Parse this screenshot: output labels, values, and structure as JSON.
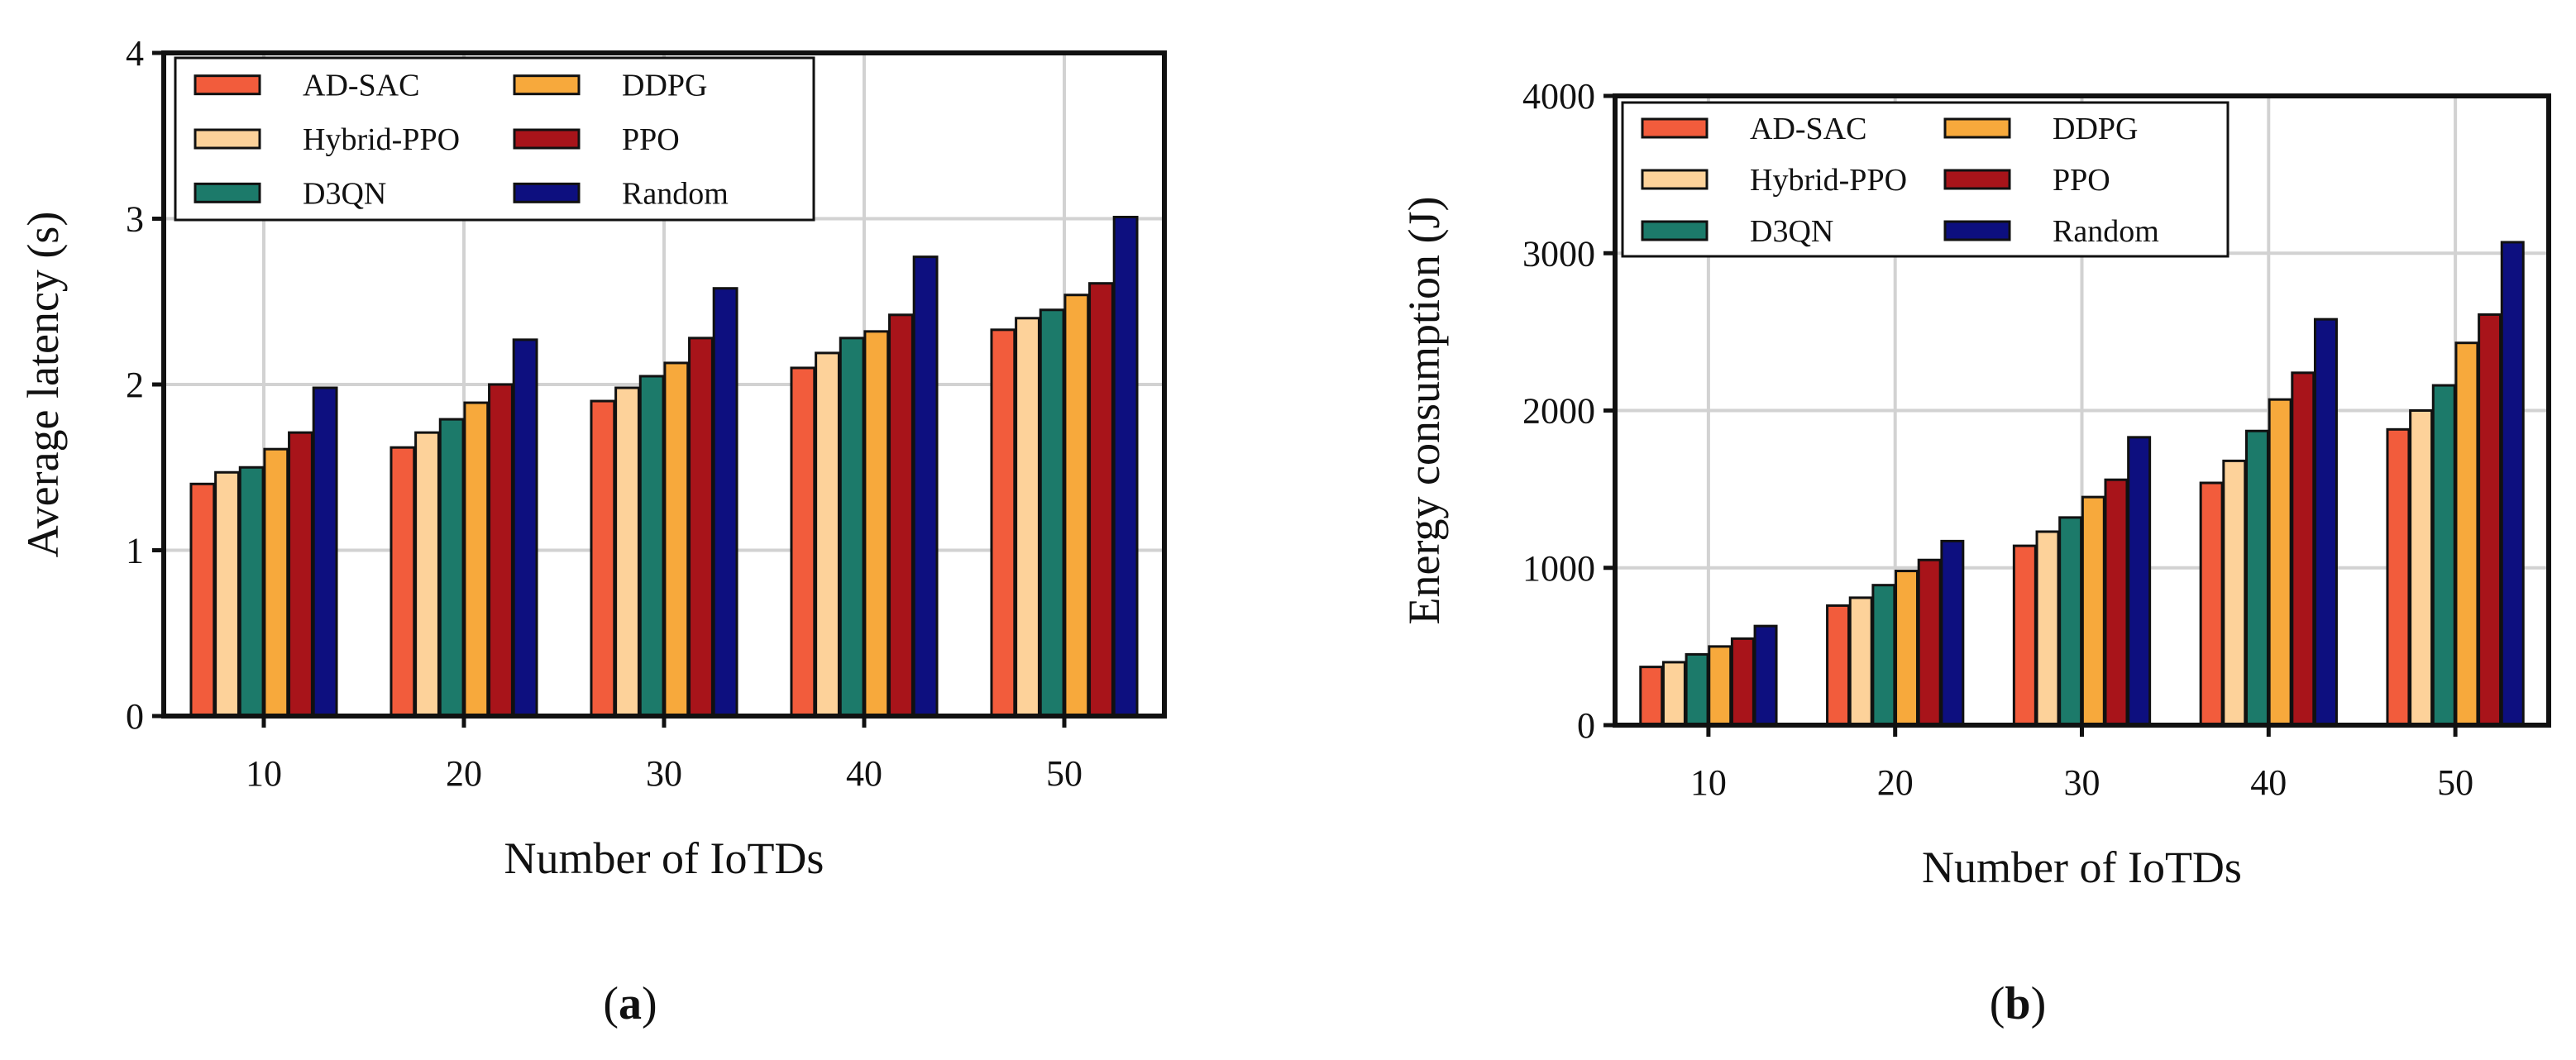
{
  "chart_data": [
    {
      "type": "bar",
      "panel": "a",
      "title": "",
      "xlabel": "Number of IoTDs",
      "ylabel": "Average latency (s)",
      "ylim": [
        0,
        4
      ],
      "yticks": [
        0,
        1,
        2,
        3,
        4
      ],
      "grid": true,
      "legend_position": "top-left",
      "categories": [
        "10",
        "20",
        "30",
        "40",
        "50"
      ],
      "series": [
        {
          "name": "AD-SAC",
          "color": "#f25c3c",
          "values": [
            1.4,
            1.62,
            1.9,
            2.1,
            2.33
          ]
        },
        {
          "name": "Hybrid-PPO",
          "color": "#fdd29a",
          "values": [
            1.47,
            1.71,
            1.98,
            2.19,
            2.4
          ]
        },
        {
          "name": "D3QN",
          "color": "#1c7a6a",
          "values": [
            1.5,
            1.79,
            2.05,
            2.28,
            2.45
          ]
        },
        {
          "name": "DDPG",
          "color": "#f7a93c",
          "values": [
            1.61,
            1.89,
            2.13,
            2.32,
            2.54
          ]
        },
        {
          "name": "PPO",
          "color": "#a8141a",
          "values": [
            1.71,
            2.0,
            2.28,
            2.42,
            2.61
          ]
        },
        {
          "name": "Random",
          "color": "#0d0f7f",
          "values": [
            1.98,
            2.27,
            2.58,
            2.77,
            3.01
          ]
        }
      ]
    },
    {
      "type": "bar",
      "panel": "b",
      "title": "",
      "xlabel": "Number of IoTDs",
      "ylabel": "Energy consumption (J)",
      "ylim": [
        0,
        4000
      ],
      "yticks": [
        0,
        1000,
        2000,
        3000,
        4000
      ],
      "grid": true,
      "legend_position": "top-left",
      "categories": [
        "10",
        "20",
        "30",
        "40",
        "50"
      ],
      "series": [
        {
          "name": "AD-SAC",
          "color": "#f25c3c",
          "values": [
            370,
            760,
            1140,
            1540,
            1880
          ]
        },
        {
          "name": "Hybrid-PPO",
          "color": "#fdd29a",
          "values": [
            400,
            810,
            1230,
            1680,
            2000
          ]
        },
        {
          "name": "D3QN",
          "color": "#1c7a6a",
          "values": [
            450,
            890,
            1320,
            1870,
            2160
          ]
        },
        {
          "name": "DDPG",
          "color": "#f7a93c",
          "values": [
            500,
            980,
            1450,
            2070,
            2430
          ]
        },
        {
          "name": "PPO",
          "color": "#a8141a",
          "values": [
            550,
            1050,
            1560,
            2240,
            2610
          ]
        },
        {
          "name": "Random",
          "color": "#0d0f7f",
          "values": [
            630,
            1170,
            1830,
            2580,
            3070
          ]
        }
      ]
    }
  ],
  "panel_labels": [
    {
      "open": "(",
      "letter": "a",
      "close": ")"
    },
    {
      "open": "(",
      "letter": "b",
      "close": ")"
    }
  ]
}
